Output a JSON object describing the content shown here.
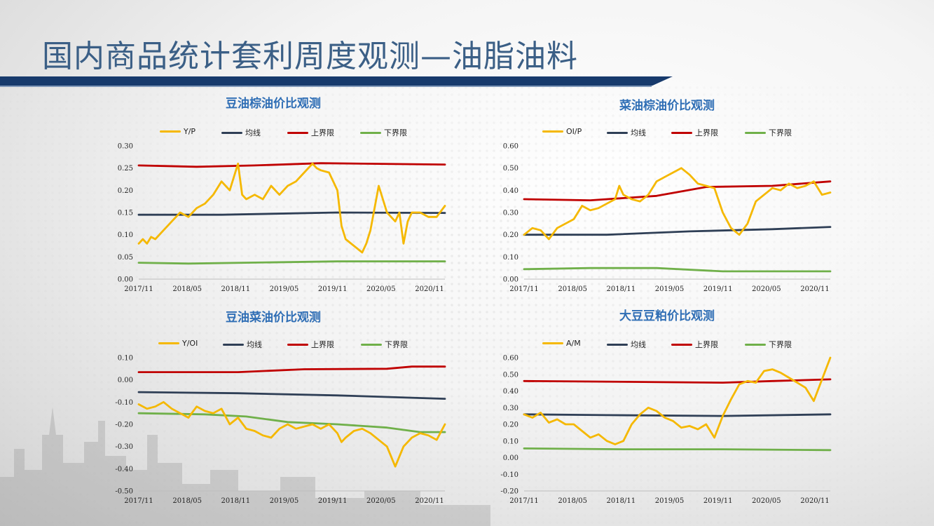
{
  "page": {
    "title": "国内商品统计套利周度观测—油脂油料"
  },
  "legend_common": {
    "mean": "均线",
    "upper": "上界限",
    "lower": "下界限"
  },
  "colors": {
    "ratio": "#f5b800",
    "mean": "#2f3f56",
    "upper": "#c00000",
    "lower": "#70b04a",
    "title_bar": "#173a6c",
    "page_title": "#3b5f86",
    "chart_title": "#2f6eb5"
  },
  "chart_data": [
    {
      "id": "soy-palm",
      "type": "line",
      "title": "豆油棕油价比观测",
      "ratio_label": "Y/P",
      "ylim": [
        0.0,
        0.3
      ],
      "yticks": [
        "0.30",
        "0.25",
        "0.20",
        "0.15",
        "0.10",
        "0.05",
        "0.00"
      ],
      "xticks": [
        "2017/11",
        "2018/05",
        "2018/11",
        "2019/05",
        "2019/11",
        "2020/05",
        "2020/11"
      ],
      "x_range": [
        0,
        37
      ],
      "series": [
        {
          "role": "ratio",
          "name": "Y/P",
          "points": [
            [
              0,
              0.08
            ],
            [
              0.5,
              0.09
            ],
            [
              1,
              0.08
            ],
            [
              1.5,
              0.095
            ],
            [
              2,
              0.09
            ],
            [
              3,
              0.11
            ],
            [
              4,
              0.13
            ],
            [
              5,
              0.15
            ],
            [
              6,
              0.14
            ],
            [
              7,
              0.16
            ],
            [
              8,
              0.17
            ],
            [
              9,
              0.19
            ],
            [
              10,
              0.22
            ],
            [
              10.5,
              0.21
            ],
            [
              11,
              0.2
            ],
            [
              12,
              0.26
            ],
            [
              12.5,
              0.19
            ],
            [
              13,
              0.18
            ],
            [
              14,
              0.19
            ],
            [
              15,
              0.18
            ],
            [
              16,
              0.21
            ],
            [
              17,
              0.19
            ],
            [
              17.5,
              0.2
            ],
            [
              18,
              0.21
            ],
            [
              19,
              0.22
            ],
            [
              20,
              0.24
            ],
            [
              21,
              0.26
            ],
            [
              21.5,
              0.25
            ],
            [
              22,
              0.245
            ],
            [
              23,
              0.24
            ],
            [
              24,
              0.2
            ],
            [
              24.5,
              0.12
            ],
            [
              25,
              0.09
            ],
            [
              26,
              0.075
            ],
            [
              27,
              0.06
            ],
            [
              27.5,
              0.08
            ],
            [
              28,
              0.11
            ],
            [
              29,
              0.21
            ],
            [
              29.5,
              0.18
            ],
            [
              30,
              0.15
            ],
            [
              31,
              0.13
            ],
            [
              31.5,
              0.15
            ],
            [
              32,
              0.08
            ],
            [
              32.5,
              0.13
            ],
            [
              33,
              0.15
            ],
            [
              34,
              0.15
            ],
            [
              35,
              0.14
            ],
            [
              36,
              0.14
            ],
            [
              37,
              0.165
            ]
          ]
        },
        {
          "role": "mean",
          "name": "均线",
          "points": [
            [
              0,
              0.145
            ],
            [
              10,
              0.145
            ],
            [
              24,
              0.15
            ],
            [
              37,
              0.149
            ]
          ]
        },
        {
          "role": "upper",
          "name": "上界限",
          "points": [
            [
              0,
              0.256
            ],
            [
              7,
              0.253
            ],
            [
              14,
              0.256
            ],
            [
              22,
              0.261
            ],
            [
              37,
              0.258
            ]
          ]
        },
        {
          "role": "lower",
          "name": "下界限",
          "points": [
            [
              0,
              0.037
            ],
            [
              6,
              0.035
            ],
            [
              24,
              0.04
            ],
            [
              37,
              0.04
            ]
          ]
        }
      ]
    },
    {
      "id": "rapeseed-palm",
      "type": "line",
      "title": "菜油棕油价比观测",
      "ratio_label": "OI/P",
      "ylim": [
        0.0,
        0.6
      ],
      "yticks": [
        "0.60",
        "0.50",
        "0.40",
        "0.30",
        "0.20",
        "0.10",
        "0.00"
      ],
      "xticks": [
        "2017/11",
        "2018/05",
        "2018/11",
        "2019/05",
        "2019/11",
        "2020/05",
        "2020/11"
      ],
      "x_range": [
        0,
        37
      ],
      "series": [
        {
          "role": "ratio",
          "name": "OI/P",
          "points": [
            [
              0,
              0.2
            ],
            [
              1,
              0.23
            ],
            [
              2,
              0.22
            ],
            [
              3,
              0.18
            ],
            [
              4,
              0.23
            ],
            [
              5,
              0.25
            ],
            [
              6,
              0.27
            ],
            [
              7,
              0.33
            ],
            [
              8,
              0.31
            ],
            [
              9,
              0.32
            ],
            [
              10,
              0.34
            ],
            [
              11,
              0.36
            ],
            [
              11.5,
              0.42
            ],
            [
              12,
              0.38
            ],
            [
              13,
              0.36
            ],
            [
              14,
              0.35
            ],
            [
              15,
              0.38
            ],
            [
              16,
              0.44
            ],
            [
              17,
              0.46
            ],
            [
              18,
              0.48
            ],
            [
              19,
              0.5
            ],
            [
              20,
              0.47
            ],
            [
              21,
              0.43
            ],
            [
              22,
              0.42
            ],
            [
              23,
              0.41
            ],
            [
              24,
              0.3
            ],
            [
              25,
              0.23
            ],
            [
              26,
              0.2
            ],
            [
              27,
              0.25
            ],
            [
              28,
              0.35
            ],
            [
              29,
              0.38
            ],
            [
              30,
              0.41
            ],
            [
              31,
              0.4
            ],
            [
              32,
              0.43
            ],
            [
              33,
              0.41
            ],
            [
              34,
              0.42
            ],
            [
              35,
              0.44
            ],
            [
              36,
              0.38
            ],
            [
              37,
              0.39
            ]
          ]
        },
        {
          "role": "mean",
          "name": "均线",
          "points": [
            [
              0,
              0.2
            ],
            [
              10,
              0.2
            ],
            [
              20,
              0.215
            ],
            [
              30,
              0.225
            ],
            [
              37,
              0.235
            ]
          ]
        },
        {
          "role": "upper",
          "name": "上界限",
          "points": [
            [
              0,
              0.36
            ],
            [
              8,
              0.355
            ],
            [
              16,
              0.375
            ],
            [
              22,
              0.415
            ],
            [
              30,
              0.42
            ],
            [
              37,
              0.44
            ]
          ]
        },
        {
          "role": "lower",
          "name": "下界限",
          "points": [
            [
              0,
              0.045
            ],
            [
              8,
              0.05
            ],
            [
              16,
              0.05
            ],
            [
              24,
              0.035
            ],
            [
              37,
              0.035
            ]
          ]
        }
      ]
    },
    {
      "id": "soy-rapeseed",
      "type": "line",
      "title": "豆油菜油价比观测",
      "ratio_label": "Y/OI",
      "ylim": [
        -0.5,
        0.1
      ],
      "yticks": [
        "0.10",
        "0.00",
        "-0.10",
        "-0.20",
        "-0.30",
        "-0.40",
        "-0.50"
      ],
      "xticks": [
        "2017/11",
        "2018/05",
        "2018/11",
        "2019/05",
        "2019/11",
        "2020/05",
        "2020/11"
      ],
      "x_range": [
        0,
        37
      ],
      "series": [
        {
          "role": "ratio",
          "name": "Y/OI",
          "points": [
            [
              0,
              -0.11
            ],
            [
              1,
              -0.13
            ],
            [
              2,
              -0.12
            ],
            [
              3,
              -0.1
            ],
            [
              4,
              -0.13
            ],
            [
              5,
              -0.15
            ],
            [
              6,
              -0.17
            ],
            [
              7,
              -0.12
            ],
            [
              8,
              -0.14
            ],
            [
              9,
              -0.15
            ],
            [
              10,
              -0.13
            ],
            [
              11,
              -0.2
            ],
            [
              12,
              -0.17
            ],
            [
              13,
              -0.22
            ],
            [
              14,
              -0.23
            ],
            [
              15,
              -0.25
            ],
            [
              16,
              -0.26
            ],
            [
              17,
              -0.22
            ],
            [
              18,
              -0.2
            ],
            [
              19,
              -0.22
            ],
            [
              20,
              -0.21
            ],
            [
              21,
              -0.2
            ],
            [
              22,
              -0.22
            ],
            [
              23,
              -0.2
            ],
            [
              24,
              -0.24
            ],
            [
              24.5,
              -0.28
            ],
            [
              25,
              -0.26
            ],
            [
              26,
              -0.23
            ],
            [
              27,
              -0.22
            ],
            [
              28,
              -0.24
            ],
            [
              29,
              -0.27
            ],
            [
              30,
              -0.3
            ],
            [
              31,
              -0.39
            ],
            [
              32,
              -0.3
            ],
            [
              33,
              -0.26
            ],
            [
              34,
              -0.24
            ],
            [
              35,
              -0.25
            ],
            [
              36,
              -0.27
            ],
            [
              37,
              -0.2
            ]
          ]
        },
        {
          "role": "mean",
          "name": "均线",
          "points": [
            [
              0,
              -0.055
            ],
            [
              12,
              -0.06
            ],
            [
              24,
              -0.07
            ],
            [
              37,
              -0.085
            ]
          ]
        },
        {
          "role": "upper",
          "name": "上界限",
          "points": [
            [
              0,
              0.035
            ],
            [
              12,
              0.035
            ],
            [
              20,
              0.048
            ],
            [
              30,
              0.05
            ],
            [
              33,
              0.06
            ],
            [
              37,
              0.06
            ]
          ]
        },
        {
          "role": "lower",
          "name": "下界限",
          "points": [
            [
              0,
              -0.15
            ],
            [
              8,
              -0.155
            ],
            [
              13,
              -0.165
            ],
            [
              18,
              -0.19
            ],
            [
              24,
              -0.2
            ],
            [
              30,
              -0.215
            ],
            [
              34,
              -0.235
            ],
            [
              37,
              -0.235
            ]
          ]
        }
      ]
    },
    {
      "id": "soybean-meal",
      "type": "line",
      "title": "大豆豆粕价比观测",
      "ratio_label": "A/M",
      "ylim": [
        -0.2,
        0.6
      ],
      "yticks": [
        "0.60",
        "0.50",
        "0.40",
        "0.30",
        "0.20",
        "0.10",
        "0.00",
        "-0.10",
        "-0.20"
      ],
      "xticks": [
        "2017/11",
        "2018/05",
        "2018/11",
        "2019/05",
        "2019/11",
        "2020/05",
        "2020/11"
      ],
      "x_range": [
        0,
        37
      ],
      "series": [
        {
          "role": "ratio",
          "name": "A/M",
          "points": [
            [
              0,
              0.26
            ],
            [
              1,
              0.24
            ],
            [
              2,
              0.27
            ],
            [
              3,
              0.21
            ],
            [
              4,
              0.23
            ],
            [
              5,
              0.2
            ],
            [
              6,
              0.2
            ],
            [
              7,
              0.16
            ],
            [
              8,
              0.12
            ],
            [
              9,
              0.14
            ],
            [
              10,
              0.1
            ],
            [
              11,
              0.08
            ],
            [
              12,
              0.1
            ],
            [
              13,
              0.2
            ],
            [
              14,
              0.26
            ],
            [
              15,
              0.3
            ],
            [
              16,
              0.28
            ],
            [
              17,
              0.24
            ],
            [
              18,
              0.22
            ],
            [
              19,
              0.18
            ],
            [
              20,
              0.19
            ],
            [
              21,
              0.17
            ],
            [
              22,
              0.2
            ],
            [
              23,
              0.12
            ],
            [
              24,
              0.25
            ],
            [
              25,
              0.35
            ],
            [
              26,
              0.44
            ],
            [
              27,
              0.46
            ],
            [
              28,
              0.45
            ],
            [
              29,
              0.52
            ],
            [
              30,
              0.53
            ],
            [
              31,
              0.51
            ],
            [
              32,
              0.48
            ],
            [
              33,
              0.45
            ],
            [
              34,
              0.42
            ],
            [
              35,
              0.34
            ],
            [
              36,
              0.47
            ],
            [
              37,
              0.6
            ]
          ]
        },
        {
          "role": "mean",
          "name": "均线",
          "points": [
            [
              0,
              0.26
            ],
            [
              10,
              0.255
            ],
            [
              24,
              0.25
            ],
            [
              37,
              0.26
            ]
          ]
        },
        {
          "role": "upper",
          "name": "上界限",
          "points": [
            [
              0,
              0.46
            ],
            [
              12,
              0.455
            ],
            [
              24,
              0.45
            ],
            [
              30,
              0.46
            ],
            [
              37,
              0.47
            ]
          ]
        },
        {
          "role": "lower",
          "name": "下界限",
          "points": [
            [
              0,
              0.055
            ],
            [
              12,
              0.05
            ],
            [
              24,
              0.05
            ],
            [
              37,
              0.045
            ]
          ]
        }
      ]
    }
  ]
}
